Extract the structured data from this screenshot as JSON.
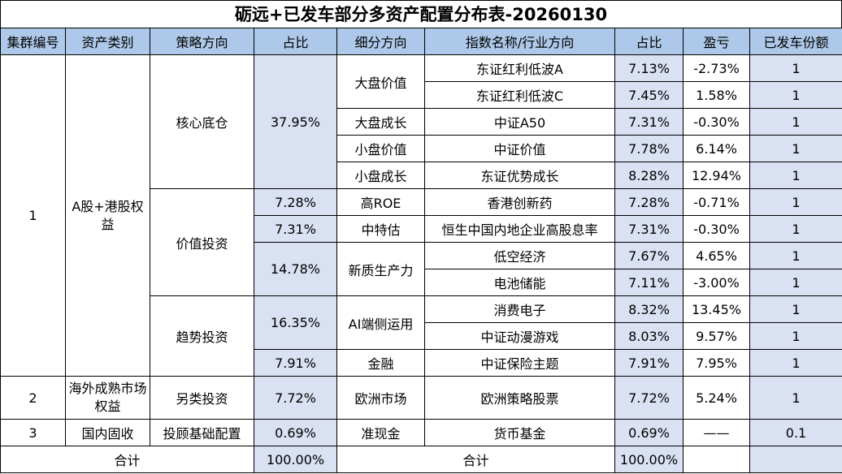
{
  "title": "砺远+已发车部分多资产配置分布表-20260130",
  "headers": [
    "集群编号",
    "资产类别",
    "策略方向",
    "占比",
    "细分方向",
    "指数名称/行业方向",
    "占比",
    "盈亏",
    "已发车份额"
  ],
  "clusters": {
    "c1": "1",
    "c2": "2",
    "c3": "3"
  },
  "asset_classes": {
    "a1": "A股+港股权益",
    "a2": "海外成熟市场权益",
    "a3": "国内固收"
  },
  "strategies": {
    "s1": "核心底仓",
    "s2": "价值投资",
    "s3": "趋势投资",
    "s4": "另类投资",
    "s5": "投顾基础配置"
  },
  "strategy_pcts": {
    "p1": "37.95%",
    "p2": "7.28%",
    "p3": "7.31%",
    "p4": "14.78%",
    "p5": "16.35%",
    "p6": "7.91%",
    "p7": "7.72%",
    "p8": "0.69%"
  },
  "sub_directions": {
    "d1": "大盘价值",
    "d2": "大盘成长",
    "d3": "小盘价值",
    "d4": "小盘成长",
    "d5": "高ROE",
    "d6": "中特估",
    "d7": "新质生产力",
    "d8": "AI端侧运用",
    "d9": "金融",
    "d10": "欧洲市场",
    "d11": "准现金"
  },
  "rows": [
    {
      "index": "东证红利低波A",
      "pct": "7.13%",
      "pnl": "-2.73%",
      "shares": "1"
    },
    {
      "index": "东证红利低波C",
      "pct": "7.45%",
      "pnl": "1.58%",
      "shares": "1"
    },
    {
      "index": "中证A50",
      "pct": "7.31%",
      "pnl": "-0.30%",
      "shares": "1"
    },
    {
      "index": "中证价值",
      "pct": "7.78%",
      "pnl": "6.14%",
      "shares": "1"
    },
    {
      "index": "东证优势成长",
      "pct": "8.28%",
      "pnl": "12.94%",
      "shares": "1"
    },
    {
      "index": "香港创新药",
      "pct": "7.28%",
      "pnl": "-0.71%",
      "shares": "1"
    },
    {
      "index": "恒生中国内地企业高股息率",
      "pct": "7.31%",
      "pnl": "-0.30%",
      "shares": "1"
    },
    {
      "index": "低空经济",
      "pct": "7.67%",
      "pnl": "4.65%",
      "shares": "1"
    },
    {
      "index": "电池储能",
      "pct": "7.11%",
      "pnl": "-3.00%",
      "shares": "1"
    },
    {
      "index": "消费电子",
      "pct": "8.32%",
      "pnl": "13.45%",
      "shares": "1"
    },
    {
      "index": "中证动漫游戏",
      "pct": "8.03%",
      "pnl": "9.57%",
      "shares": "1"
    },
    {
      "index": "中证保险主题",
      "pct": "7.91%",
      "pnl": "7.95%",
      "shares": "1"
    },
    {
      "index": "欧洲策略股票",
      "pct": "7.72%",
      "pnl": "5.24%",
      "shares": "1"
    },
    {
      "index": "货币基金",
      "pct": "0.69%",
      "pnl": "——",
      "shares": "0.1"
    }
  ],
  "total": {
    "label_left": "合计",
    "pct_left": "100.00%",
    "label_right": "合计",
    "pct_right": "100.00%"
  }
}
